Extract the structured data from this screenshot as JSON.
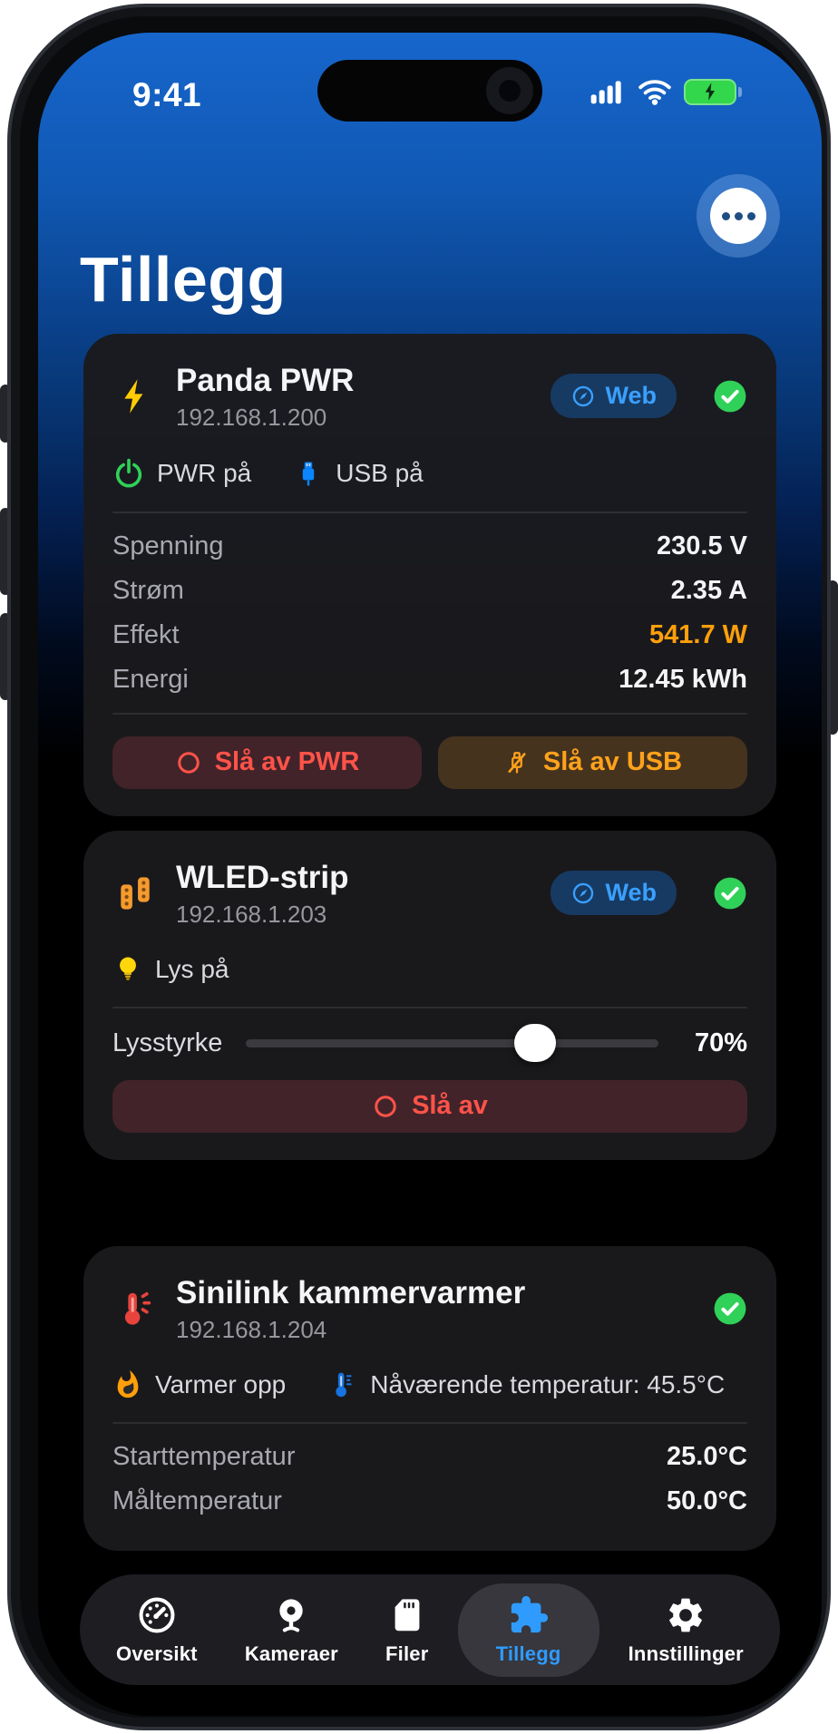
{
  "status_bar": {
    "time": "9:41"
  },
  "header": {
    "title": "Tillegg"
  },
  "cards": [
    {
      "name": "Panda PWR",
      "ip": "192.168.1.200",
      "web_label": "Web",
      "online": true,
      "statuses": [
        {
          "label": "PWR på"
        },
        {
          "label": "USB på"
        }
      ],
      "metrics": [
        {
          "label": "Spenning",
          "value": "230.5 V"
        },
        {
          "label": "Strøm",
          "value": "2.35 A"
        },
        {
          "label": "Effekt",
          "value": "541.7 W",
          "highlight": true
        },
        {
          "label": "Energi",
          "value": "12.45 kWh"
        }
      ],
      "buttons": [
        {
          "label": "Slå av PWR"
        },
        {
          "label": "Slå av USB"
        }
      ]
    },
    {
      "name": "WLED-strip",
      "ip": "192.168.1.203",
      "web_label": "Web",
      "online": true,
      "statuses": [
        {
          "label": "Lys på"
        }
      ],
      "slider": {
        "label": "Lysstyrke",
        "value": "70%",
        "percent": 70
      },
      "buttons": [
        {
          "label": "Slå av"
        }
      ]
    },
    {
      "name": "Sinilink kammervarmer",
      "ip": "192.168.1.204",
      "online": true,
      "statuses": [
        {
          "label": "Varmer opp"
        },
        {
          "label": "Nåværende temperatur: 45.5°C"
        }
      ],
      "metrics": [
        {
          "label": "Starttemperatur",
          "value": "25.0°C"
        },
        {
          "label": "Måltemperatur",
          "value": "50.0°C"
        }
      ]
    }
  ],
  "tab_bar": {
    "items": [
      {
        "label": "Oversikt",
        "active": false
      },
      {
        "label": "Kameraer",
        "active": false
      },
      {
        "label": "Filer",
        "active": false
      },
      {
        "label": "Tillegg",
        "active": true
      },
      {
        "label": "Innstillinger",
        "active": false
      }
    ]
  },
  "colors": {
    "accent_blue": "#0a84ff",
    "success_green": "#30d158",
    "danger_red": "#ff453a",
    "warning_orange": "#ff9f0a",
    "header_blue": "#1766cd"
  }
}
